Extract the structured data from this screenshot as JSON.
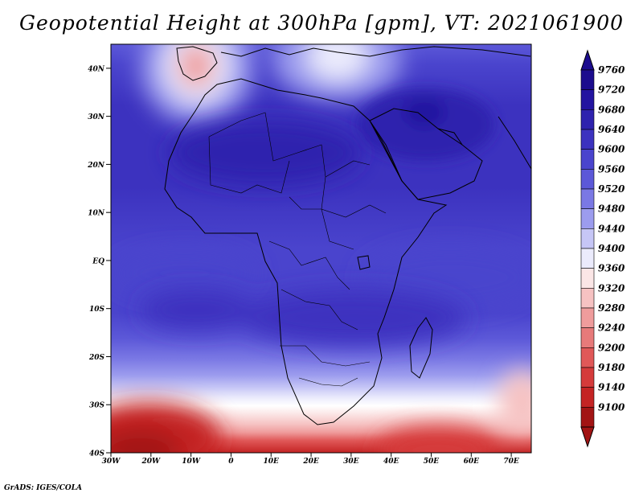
{
  "title": "Geopotential Height at 300hPa [gpm], VT: 2021061900",
  "credit": "GrADS: IGES/COLA",
  "map": {
    "lon_range": [
      -30,
      75
    ],
    "lat_range": [
      -40,
      45
    ],
    "lat_ticks": [
      {
        "value": 40,
        "label": "40N"
      },
      {
        "value": 30,
        "label": "30N"
      },
      {
        "value": 20,
        "label": "20N"
      },
      {
        "value": 10,
        "label": "10N"
      },
      {
        "value": 0,
        "label": "EQ"
      },
      {
        "value": -10,
        "label": "10S"
      },
      {
        "value": -20,
        "label": "20S"
      },
      {
        "value": -30,
        "label": "30S"
      },
      {
        "value": -40,
        "label": "40S"
      }
    ],
    "lon_ticks": [
      {
        "value": -30,
        "label": "30W"
      },
      {
        "value": -20,
        "label": "20W"
      },
      {
        "value": -10,
        "label": "10W"
      },
      {
        "value": 0,
        "label": "0"
      },
      {
        "value": 10,
        "label": "10E"
      },
      {
        "value": 20,
        "label": "20E"
      },
      {
        "value": 30,
        "label": "30E"
      },
      {
        "value": 40,
        "label": "40E"
      },
      {
        "value": 50,
        "label": "50E"
      },
      {
        "value": 60,
        "label": "60E"
      },
      {
        "value": 70,
        "label": "70E"
      }
    ]
  },
  "colorbar": {
    "levels": [
      {
        "label": "9760",
        "color": "#1c0c8e"
      },
      {
        "label": "9720",
        "color": "#2314a0"
      },
      {
        "label": "9680",
        "color": "#2e22ae"
      },
      {
        "label": "9640",
        "color": "#3c32bf"
      },
      {
        "label": "9600",
        "color": "#4a44cd"
      },
      {
        "label": "9560",
        "color": "#5c58d8"
      },
      {
        "label": "9520",
        "color": "#7a78e4"
      },
      {
        "label": "9480",
        "color": "#9c9cee"
      },
      {
        "label": "9440",
        "color": "#c6c6f6"
      },
      {
        "label": "9400",
        "color": "#ebebfc"
      },
      {
        "label": "9360",
        "color": "#fbe6e6"
      },
      {
        "label": "9320",
        "color": "#f6c2c2"
      },
      {
        "label": "9280",
        "color": "#ef9c9c"
      },
      {
        "label": "9240",
        "color": "#e77a7a"
      },
      {
        "label": "9200",
        "color": "#e05858"
      },
      {
        "label": "9180",
        "color": "#d53b3b"
      },
      {
        "label": "9140",
        "color": "#c42424"
      },
      {
        "label": "9100",
        "color": "#a21414"
      }
    ]
  }
}
